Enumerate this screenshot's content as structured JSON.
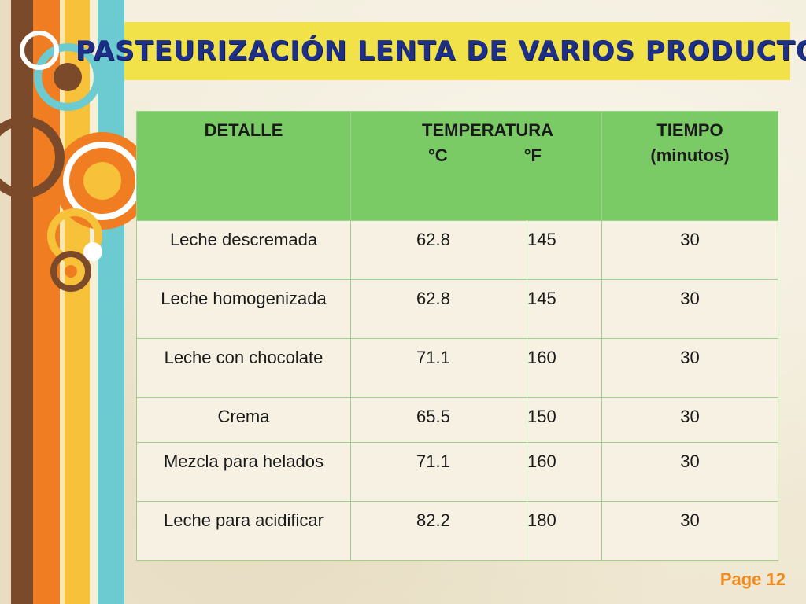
{
  "slide": {
    "title": "PASTEURIZACIÓN LENTA DE VARIOS PRODUCTOS",
    "page_label": "Page 12"
  },
  "table": {
    "headers": {
      "detalle": "DETALLE",
      "temperatura": "TEMPERATURA",
      "celsius": "°C",
      "fahrenheit": "°F",
      "tiempo_line1": "TIEMPO",
      "tiempo_line2": "(minutos)"
    },
    "rows": [
      {
        "detalle": "Leche descremada",
        "celsius": "62.8",
        "fahrenheit": "145",
        "tiempo": "30"
      },
      {
        "detalle": "Leche homogenizada",
        "celsius": "62.8",
        "fahrenheit": "145",
        "tiempo": "30"
      },
      {
        "detalle": "Leche con chocolate",
        "celsius": "71.1",
        "fahrenheit": "160",
        "tiempo": "30"
      },
      {
        "detalle": "Crema",
        "celsius": "65.5",
        "fahrenheit": "150",
        "tiempo": "30"
      },
      {
        "detalle": "Mezcla para helados",
        "celsius": "71.1",
        "fahrenheit": "160",
        "tiempo": "30"
      },
      {
        "detalle": "Leche para acidificar",
        "celsius": "82.2",
        "fahrenheit": "180",
        "tiempo": "30"
      }
    ]
  },
  "colors": {
    "header_green": "#7acb66",
    "title_yellow": "#f1e24a",
    "title_blue": "#1d2f86",
    "page_orange": "#f08a1c"
  }
}
